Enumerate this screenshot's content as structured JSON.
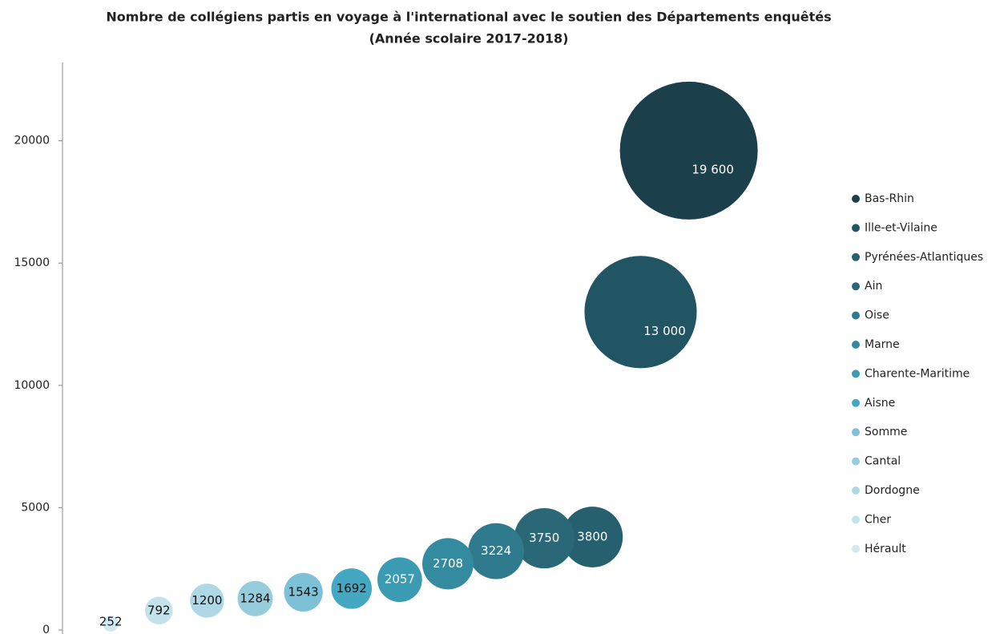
{
  "chart_data": {
    "type": "bubble",
    "title": "Nombre de collégiens partis en voyage à l'international avec le soutien des Départements enquêtés",
    "subtitle": "(Année scolaire 2017-2018)",
    "xlim": [
      0,
      16
    ],
    "ylim": [
      0,
      23200
    ],
    "yticks": [
      0,
      5000,
      10000,
      15000,
      20000
    ],
    "grid": false,
    "legend": "right",
    "series": [
      {
        "name": "Bas-Rhin",
        "color": "#1b3f4b",
        "x": [
          13
        ],
        "values": [
          19600
        ],
        "value_labels": [
          "19 600"
        ]
      },
      {
        "name": "Ille-et-Vilaine",
        "color": "#215563",
        "x": [
          12
        ],
        "values": [
          13000
        ],
        "value_labels": [
          "13 000"
        ]
      },
      {
        "name": "Pyrénées-Atlantiques",
        "color": "#265f6e",
        "x": [
          11
        ],
        "values": [
          3800
        ]
      },
      {
        "name": "Ain",
        "color": "#2a6878",
        "x": [
          10
        ],
        "values": [
          3750
        ]
      },
      {
        "name": "Oise",
        "color": "#2f7a8c",
        "x": [
          9
        ],
        "values": [
          3224
        ]
      },
      {
        "name": "Marne",
        "color": "#348a9e",
        "x": [
          8
        ],
        "values": [
          2708
        ]
      },
      {
        "name": "Charente-Maritime",
        "color": "#3a9bb3",
        "x": [
          7
        ],
        "values": [
          2057
        ]
      },
      {
        "name": "Aisne",
        "color": "#44a8c2",
        "x": [
          6
        ],
        "values": [
          1692
        ]
      },
      {
        "name": "Somme",
        "color": "#7cc1d6",
        "x": [
          5
        ],
        "values": [
          1543
        ]
      },
      {
        "name": "Cantal",
        "color": "#96cddd",
        "x": [
          4
        ],
        "values": [
          1284
        ]
      },
      {
        "name": "Dordogne",
        "color": "#aed8e5",
        "x": [
          3
        ],
        "values": [
          1200
        ]
      },
      {
        "name": "Cher",
        "color": "#c4e2ec",
        "x": [
          2
        ],
        "values": [
          792
        ]
      },
      {
        "name": "Hérault",
        "color": "#d3e9f1",
        "x": [
          1
        ],
        "values": [
          252
        ]
      }
    ]
  }
}
